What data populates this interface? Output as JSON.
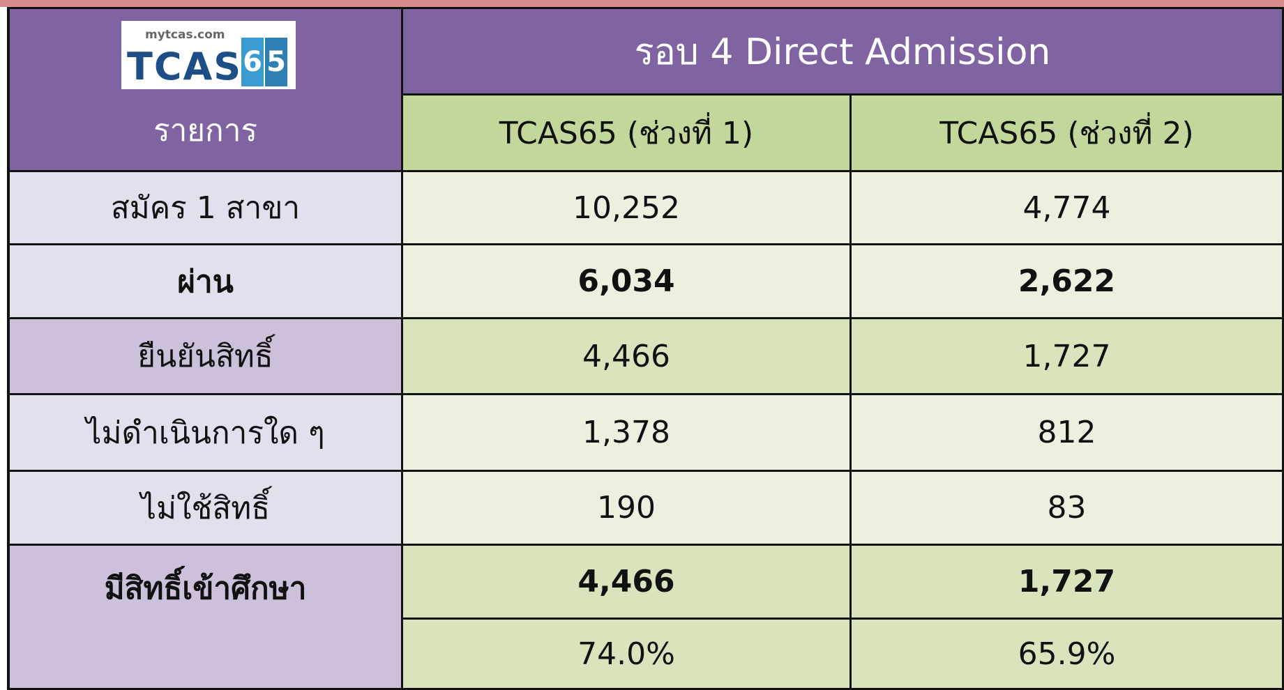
{
  "logo": {
    "site": "mytcas.com",
    "brand": "TCAS",
    "digits": [
      "6",
      "5"
    ]
  },
  "header": {
    "title": "รอบ 4 Direct Admission",
    "label_column": "รายการ",
    "columns": [
      "TCAS65 (ช่วงที่ 1)",
      "TCAS65 (ช่วงที่ 2)"
    ]
  },
  "table": {
    "rows": [
      {
        "label": "สมัคร 1 สาขา",
        "values": [
          "10,252",
          "4,774"
        ],
        "bold": false
      },
      {
        "label": "ผ่าน",
        "values": [
          "6,034",
          "2,622"
        ],
        "bold": true
      },
      {
        "label": "ยืนยันสิทธิ์",
        "values": [
          "4,466",
          "1,727"
        ],
        "bold": false
      },
      {
        "label": "ไม่ดำเนินการใด ๆ",
        "values": [
          "1,378",
          "812"
        ],
        "bold": false
      },
      {
        "label": "ไม่ใช้สิทธิ์",
        "values": [
          "190",
          "83"
        ],
        "bold": false
      },
      {
        "label": "มีสิทธิ์เข้าศึกษา",
        "values": [
          "4,466",
          "1,727"
        ],
        "bold": true
      }
    ],
    "percent_row": [
      "74.0%",
      "65.9%"
    ]
  }
}
